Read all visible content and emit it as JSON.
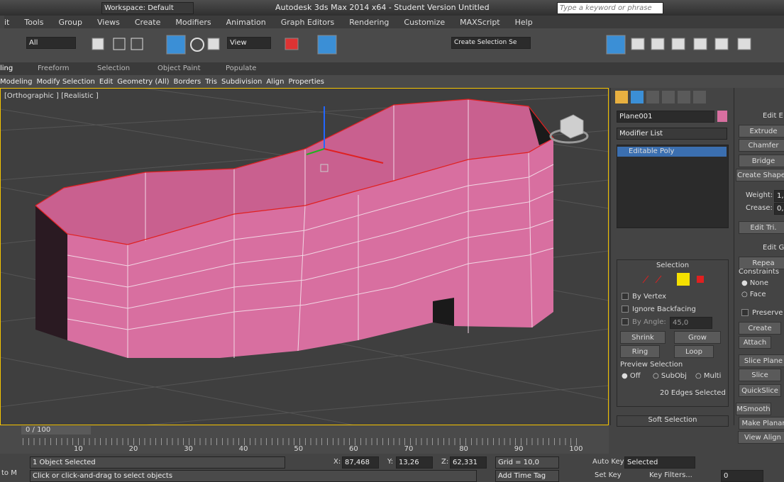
{
  "title_bar": {
    "workspace": "Workspace: Default",
    "title": "Autodesk 3ds Max 2014 x64 - Student Version   Untitled",
    "search": "Type a keyword or phrase"
  },
  "menu": [
    "it",
    "Tools",
    "Group",
    "Views",
    "Create",
    "Modifiers",
    "Animation",
    "Graph Editors",
    "Rendering",
    "Customize",
    "MAXScript",
    "Help"
  ],
  "toolbar": {
    "filter": "All",
    "coord": "View",
    "selection_set": "Create Selection Se"
  },
  "ribbon_tabs": [
    "ling",
    "Freeform",
    "Selection",
    "Object Paint",
    "Populate"
  ],
  "ribbon_items": [
    "Modeling",
    "Modify Selection",
    "Edit",
    "Geometry (All)",
    "Borders",
    "Tris",
    "Subdivision",
    "Align",
    "Properties"
  ],
  "viewport": {
    "label": "[Orthographic ] [Realistic ]"
  },
  "command_panel": {
    "object_name": "Plane001",
    "modifier_list": "Modifier List",
    "stack_item": "Editable Poly",
    "selection": {
      "title": "Selection",
      "by_vertex": "By Vertex",
      "ignore_backfacing": "Ignore Backfacing",
      "by_angle": "By Angle:",
      "angle": "45,0",
      "shrink": "Shrink",
      "grow": "Grow",
      "ring": "Ring",
      "loop": "Loop",
      "preview": "Preview Selection",
      "off": "Off",
      "subobj": "SubObj",
      "multi": "Multi",
      "status": "20 Edges Selected"
    },
    "soft_selection": "Soft Selection"
  },
  "edit_edges": {
    "title": "Edit E",
    "extrude": "Extrude",
    "chamfer": "Chamfer",
    "bridge": "Bridge",
    "create_shape": "Create Shape",
    "weight": "Weight:",
    "weight_value": "1,",
    "crease": "Crease:",
    "crease_value": "0,",
    "edit_tri": "Edit Tri."
  },
  "edit_geometry": {
    "title": "Edit Ge",
    "repeat": "Repea",
    "constraints": "Constraints",
    "none": "None",
    "face": "Face",
    "preserve": "Preserve",
    "create": "Create",
    "attach": "Attach",
    "slice_plane": "Slice Plane",
    "slice": "Slice",
    "quickslice": "QuickSlice",
    "msmooth": "MSmooth",
    "make_planar": "Make Planar",
    "view_align": "View Align"
  },
  "timeline": {
    "position": "0 / 100",
    "ticks": [
      "10",
      "20",
      "30",
      "40",
      "50",
      "60",
      "70",
      "80",
      "90",
      "100"
    ]
  },
  "status": {
    "selected": "1 Object Selected",
    "prompt": "Click or click-and-drag to select objects",
    "left": "to M",
    "x_label": "X:",
    "x": "87,468",
    "y_label": "Y:",
    "y": "13,26",
    "z_label": "Z:",
    "z": "62,331",
    "grid": "Grid = 10,0",
    "add_time_tag": "Add Time Tag",
    "auto_key": "Auto Key",
    "key_mode": "Selected",
    "set_key": "Set Key",
    "key_filters": "Key Filters...",
    "frame": "0"
  }
}
